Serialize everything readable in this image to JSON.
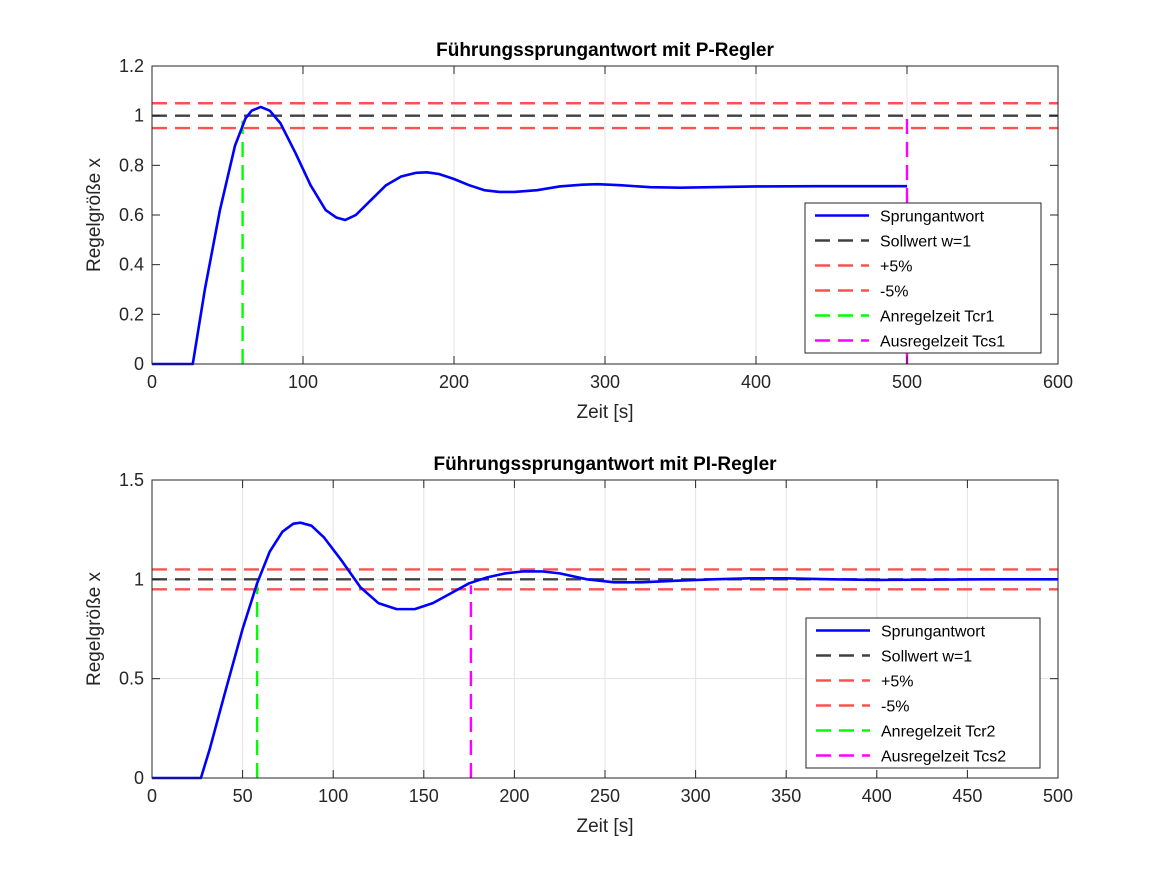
{
  "chart_data": [
    {
      "type": "line",
      "title": "Führungssprungantwort mit P-Regler",
      "xlabel": "Zeit [s]",
      "ylabel": "Regelgröße x",
      "xlim": [
        0,
        600
      ],
      "ylim": [
        0,
        1.2
      ],
      "xticks": [
        0,
        100,
        200,
        300,
        400,
        500,
        600
      ],
      "yticks": [
        0,
        0.2,
        0.4,
        0.6,
        0.8,
        1,
        1.2
      ],
      "xtick_labels": [
        "0",
        "100",
        "200",
        "300",
        "400",
        "500",
        "600"
      ],
      "ytick_labels": [
        "0",
        "0.2",
        "0.4",
        "0.6",
        "0.8",
        "1",
        "1.2"
      ],
      "grid": "x-only",
      "legend_position": "right",
      "series": [
        {
          "name": "Sprungantwort",
          "style": "solid",
          "color": "#0000ff",
          "points": [
            [
              0,
              0
            ],
            [
              27,
              0
            ],
            [
              35,
              0.3
            ],
            [
              45,
              0.62
            ],
            [
              55,
              0.88
            ],
            [
              62,
              0.99
            ],
            [
              66,
              1.02
            ],
            [
              72,
              1.035
            ],
            [
              78,
              1.02
            ],
            [
              85,
              0.97
            ],
            [
              95,
              0.85
            ],
            [
              105,
              0.72
            ],
            [
              115,
              0.62
            ],
            [
              122,
              0.59
            ],
            [
              128,
              0.58
            ],
            [
              135,
              0.6
            ],
            [
              145,
              0.66
            ],
            [
              155,
              0.72
            ],
            [
              165,
              0.755
            ],
            [
              175,
              0.77
            ],
            [
              182,
              0.772
            ],
            [
              190,
              0.765
            ],
            [
              200,
              0.745
            ],
            [
              210,
              0.72
            ],
            [
              220,
              0.7
            ],
            [
              230,
              0.693
            ],
            [
              240,
              0.693
            ],
            [
              255,
              0.7
            ],
            [
              270,
              0.715
            ],
            [
              285,
              0.722
            ],
            [
              295,
              0.724
            ],
            [
              310,
              0.72
            ],
            [
              330,
              0.712
            ],
            [
              350,
              0.71
            ],
            [
              370,
              0.712
            ],
            [
              400,
              0.715
            ],
            [
              440,
              0.716
            ],
            [
              480,
              0.716
            ],
            [
              500,
              0.716
            ]
          ]
        },
        {
          "name": "Sollwert w=1",
          "style": "dashed",
          "color": "#404040",
          "points": [
            [
              0,
              1
            ],
            [
              600,
              1
            ]
          ]
        },
        {
          "name": "+5%",
          "style": "dashed",
          "color": "#ff5050",
          "points": [
            [
              0,
              1.05
            ],
            [
              600,
              1.05
            ]
          ]
        },
        {
          "name": "-5%",
          "style": "dashed",
          "color": "#ff5050",
          "points": [
            [
              0,
              0.95
            ],
            [
              600,
              0.95
            ]
          ]
        },
        {
          "name": "Anregelzeit Tcr1",
          "style": "dashed",
          "color": "#00ff00",
          "points": [
            [
              60,
              0
            ],
            [
              60,
              0.98
            ]
          ]
        },
        {
          "name": "Ausregelzeit Tcs1",
          "style": "dashed",
          "color": "#ff00ff",
          "points": [
            [
              500,
              0
            ],
            [
              500,
              1
            ]
          ]
        }
      ]
    },
    {
      "type": "line",
      "title": "Führungssprungantwort mit PI-Regler",
      "xlabel": "Zeit [s]",
      "ylabel": "Regelgröße x",
      "xlim": [
        0,
        500
      ],
      "ylim": [
        0,
        1.5
      ],
      "xticks": [
        0,
        50,
        100,
        150,
        200,
        250,
        300,
        350,
        400,
        450,
        500
      ],
      "yticks": [
        0,
        0.5,
        1,
        1.5
      ],
      "xtick_labels": [
        "0",
        "50",
        "100",
        "150",
        "200",
        "250",
        "300",
        "350",
        "400",
        "450",
        "500"
      ],
      "ytick_labels": [
        "0",
        "0.5",
        "1",
        "1.5"
      ],
      "grid": "both",
      "legend_position": "bottom-right",
      "series": [
        {
          "name": "Sprungantwort",
          "style": "solid",
          "color": "#0000ff",
          "points": [
            [
              0,
              0
            ],
            [
              27,
              0
            ],
            [
              32,
              0.15
            ],
            [
              40,
              0.42
            ],
            [
              50,
              0.75
            ],
            [
              58,
              0.98
            ],
            [
              65,
              1.14
            ],
            [
              72,
              1.24
            ],
            [
              78,
              1.28
            ],
            [
              82,
              1.285
            ],
            [
              88,
              1.27
            ],
            [
              95,
              1.21
            ],
            [
              105,
              1.09
            ],
            [
              115,
              0.96
            ],
            [
              125,
              0.88
            ],
            [
              135,
              0.85
            ],
            [
              145,
              0.85
            ],
            [
              155,
              0.88
            ],
            [
              165,
              0.93
            ],
            [
              175,
              0.98
            ],
            [
              185,
              1.01
            ],
            [
              195,
              1.03
            ],
            [
              205,
              1.04
            ],
            [
              215,
              1.04
            ],
            [
              225,
              1.03
            ],
            [
              240,
              1.0
            ],
            [
              255,
              0.985
            ],
            [
              270,
              0.985
            ],
            [
              290,
              0.993
            ],
            [
              310,
              1.0
            ],
            [
              330,
              1.005
            ],
            [
              350,
              1.005
            ],
            [
              375,
              1.0
            ],
            [
              400,
              0.997
            ],
            [
              430,
              0.998
            ],
            [
              460,
              1.0
            ],
            [
              500,
              1.0
            ]
          ]
        },
        {
          "name": "Sollwert w=1",
          "style": "dashed",
          "color": "#404040",
          "points": [
            [
              0,
              1
            ],
            [
              500,
              1
            ]
          ]
        },
        {
          "name": "+5%",
          "style": "dashed",
          "color": "#ff5050",
          "points": [
            [
              0,
              1.05
            ],
            [
              500,
              1.05
            ]
          ]
        },
        {
          "name": "-5%",
          "style": "dashed",
          "color": "#ff5050",
          "points": [
            [
              0,
              0.95
            ],
            [
              500,
              0.95
            ]
          ]
        },
        {
          "name": "Anregelzeit Tcr2",
          "style": "dashed",
          "color": "#00ff00",
          "points": [
            [
              58,
              0
            ],
            [
              58,
              0.98
            ]
          ]
        },
        {
          "name": "Ausregelzeit Tcs2",
          "style": "dashed",
          "color": "#ff00ff",
          "points": [
            [
              176,
              0
            ],
            [
              176,
              0.97
            ]
          ]
        }
      ]
    }
  ]
}
